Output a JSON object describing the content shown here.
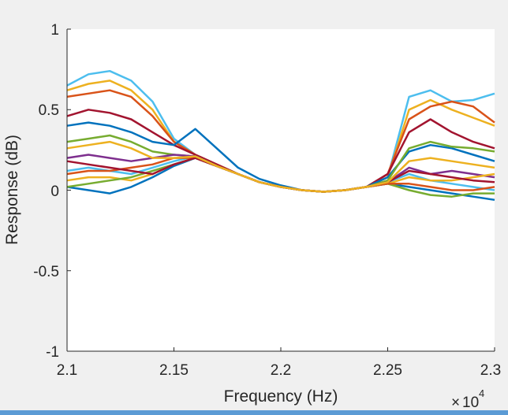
{
  "chart_data": {
    "type": "line",
    "title": "",
    "xlabel": "Frequency (Hz)",
    "ylabel": "Response (dB)",
    "x_scale_multiplier": "10",
    "x_scale_exponent": "4",
    "xlim": [
      21000,
      23000
    ],
    "ylim": [
      -1,
      1
    ],
    "xticks": [
      21000,
      21500,
      22000,
      22500,
      23000
    ],
    "xtick_labels": [
      "2.1",
      "2.15",
      "2.2",
      "2.25",
      "2.3"
    ],
    "yticks": [
      -1,
      -0.5,
      0,
      0.5,
      1
    ],
    "ytick_labels": [
      "-1",
      "-0.5",
      "0",
      "0.5",
      "1"
    ],
    "grid": false,
    "legend": "none",
    "x": [
      21000,
      21100,
      21200,
      21300,
      21400,
      21500,
      21600,
      21700,
      21800,
      21900,
      22000,
      22100,
      22200,
      22300,
      22400,
      22500,
      22600,
      22700,
      22800,
      22900,
      23000
    ],
    "series": [
      {
        "color": "#4DBEEE",
        "values": [
          0.65,
          0.72,
          0.74,
          0.68,
          0.55,
          0.32,
          0.22,
          0.16,
          0.1,
          0.05,
          0.02,
          0.0,
          -0.01,
          0.0,
          0.02,
          0.08,
          0.58,
          0.62,
          0.55,
          0.56,
          0.6
        ]
      },
      {
        "color": "#EDB120",
        "values": [
          0.62,
          0.66,
          0.68,
          0.62,
          0.5,
          0.3,
          0.22,
          0.16,
          0.1,
          0.05,
          0.02,
          0.0,
          -0.01,
          0.0,
          0.02,
          0.08,
          0.5,
          0.56,
          0.5,
          0.45,
          0.4
        ]
      },
      {
        "color": "#D95319",
        "values": [
          0.58,
          0.6,
          0.62,
          0.58,
          0.46,
          0.3,
          0.22,
          0.16,
          0.1,
          0.05,
          0.02,
          0.0,
          -0.01,
          0.0,
          0.02,
          0.1,
          0.44,
          0.52,
          0.55,
          0.52,
          0.42
        ]
      },
      {
        "color": "#A2142F",
        "values": [
          0.46,
          0.5,
          0.48,
          0.44,
          0.36,
          0.28,
          0.22,
          0.16,
          0.1,
          0.05,
          0.02,
          0.0,
          -0.01,
          0.0,
          0.02,
          0.1,
          0.36,
          0.44,
          0.36,
          0.3,
          0.26
        ]
      },
      {
        "color": "#0072BD",
        "values": [
          0.4,
          0.42,
          0.4,
          0.36,
          0.3,
          0.28,
          0.38,
          0.26,
          0.14,
          0.07,
          0.03,
          0.0,
          -0.01,
          0.0,
          0.02,
          0.08,
          0.24,
          0.28,
          0.26,
          0.22,
          0.18
        ]
      },
      {
        "color": "#77AC30",
        "values": [
          0.3,
          0.32,
          0.34,
          0.3,
          0.24,
          0.22,
          0.21,
          0.15,
          0.1,
          0.05,
          0.02,
          0.0,
          -0.01,
          0.0,
          0.02,
          0.06,
          0.26,
          0.3,
          0.27,
          0.26,
          0.24
        ]
      },
      {
        "color": "#7E2F8E",
        "values": [
          0.2,
          0.22,
          0.2,
          0.18,
          0.2,
          0.22,
          0.21,
          0.15,
          0.1,
          0.05,
          0.02,
          0.0,
          -0.01,
          0.0,
          0.02,
          0.05,
          0.14,
          0.1,
          0.12,
          0.1,
          0.08
        ]
      },
      {
        "color": "#4DBEEE",
        "values": [
          0.12,
          0.14,
          0.12,
          0.1,
          0.14,
          0.18,
          0.21,
          0.15,
          0.1,
          0.05,
          0.02,
          0.0,
          -0.01,
          0.0,
          0.02,
          0.05,
          0.1,
          0.06,
          0.04,
          0.02,
          0.0
        ]
      },
      {
        "color": "#EDB120",
        "values": [
          0.06,
          0.08,
          0.08,
          0.06,
          0.1,
          0.16,
          0.2,
          0.15,
          0.1,
          0.05,
          0.02,
          0.0,
          -0.01,
          0.0,
          0.02,
          0.04,
          0.08,
          0.06,
          0.06,
          0.08,
          0.1
        ]
      },
      {
        "color": "#0072BD",
        "values": [
          0.02,
          0.0,
          -0.02,
          0.02,
          0.08,
          0.15,
          0.2,
          0.15,
          0.1,
          0.05,
          0.02,
          0.0,
          -0.01,
          0.0,
          0.02,
          0.04,
          0.02,
          0.0,
          -0.02,
          -0.04,
          -0.06
        ]
      },
      {
        "color": "#77AC30",
        "values": [
          0.02,
          0.04,
          0.06,
          0.08,
          0.12,
          0.16,
          0.2,
          0.15,
          0.1,
          0.05,
          0.02,
          0.0,
          -0.01,
          0.0,
          0.02,
          0.04,
          0.0,
          -0.03,
          -0.04,
          -0.02,
          -0.02
        ]
      },
      {
        "color": "#D95319",
        "values": [
          0.1,
          0.12,
          0.12,
          0.14,
          0.16,
          0.2,
          0.2,
          0.15,
          0.1,
          0.05,
          0.02,
          0.0,
          -0.01,
          0.0,
          0.02,
          0.04,
          0.04,
          0.02,
          0.0,
          0.0,
          0.02
        ]
      },
      {
        "color": "#A2142F",
        "values": [
          0.18,
          0.16,
          0.14,
          0.12,
          0.1,
          0.16,
          0.2,
          0.15,
          0.1,
          0.05,
          0.02,
          0.0,
          -0.01,
          0.0,
          0.02,
          0.05,
          0.12,
          0.1,
          0.08,
          0.06,
          0.05
        ]
      },
      {
        "color": "#EDB120",
        "values": [
          0.26,
          0.28,
          0.3,
          0.26,
          0.2,
          0.2,
          0.21,
          0.15,
          0.1,
          0.05,
          0.02,
          0.0,
          -0.01,
          0.0,
          0.02,
          0.05,
          0.18,
          0.2,
          0.18,
          0.16,
          0.14
        ]
      }
    ]
  }
}
